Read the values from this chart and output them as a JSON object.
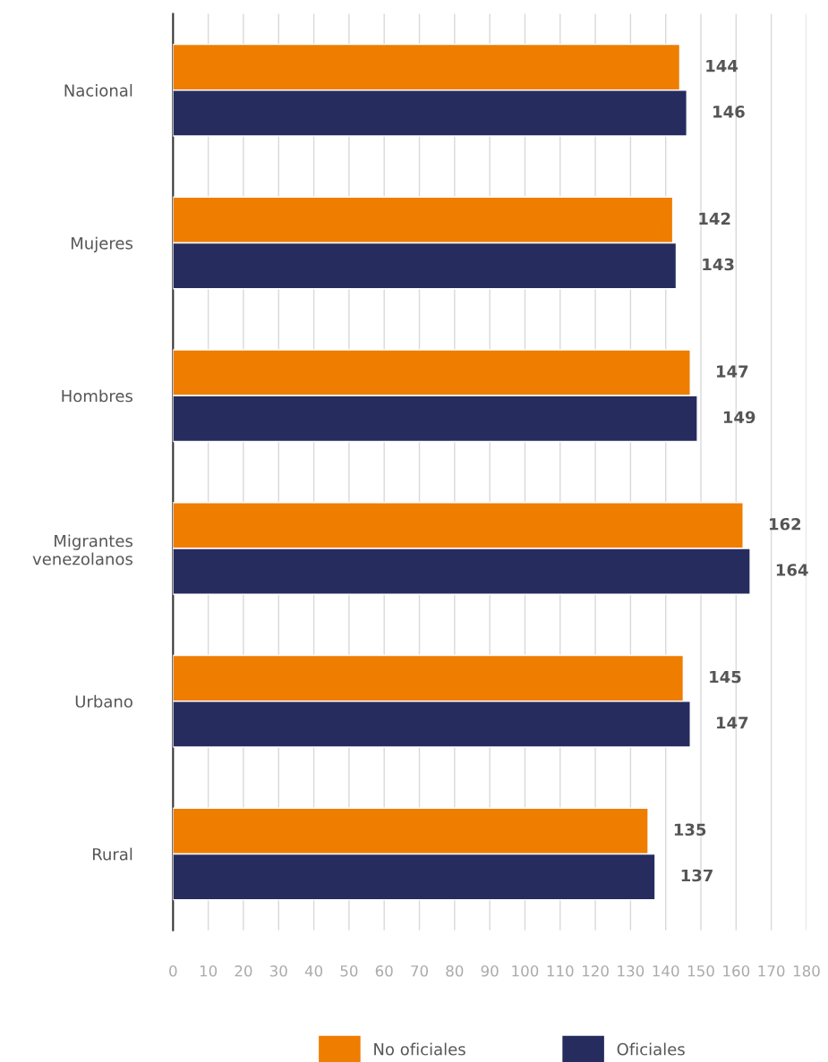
{
  "chart_data": {
    "type": "bar",
    "orientation": "horizontal",
    "categories": [
      "Nacional",
      "Mujeres",
      "Hombres",
      "Migrantes\nvenezolanos",
      "Urbano",
      "Rural"
    ],
    "series": [
      {
        "name": "No oficiales",
        "color": "#ef7d00",
        "values": [
          144,
          142,
          147,
          162,
          145,
          135
        ]
      },
      {
        "name": "Oficiales",
        "color": "#262c5e",
        "values": [
          146,
          143,
          149,
          164,
          147,
          137
        ]
      }
    ],
    "xlim": [
      0,
      180
    ],
    "xticks": [
      0,
      10,
      20,
      30,
      40,
      50,
      60,
      70,
      80,
      90,
      100,
      110,
      120,
      130,
      140,
      150,
      160,
      170,
      180
    ],
    "grid": "x",
    "legend": "bottom",
    "data_labels": true
  }
}
